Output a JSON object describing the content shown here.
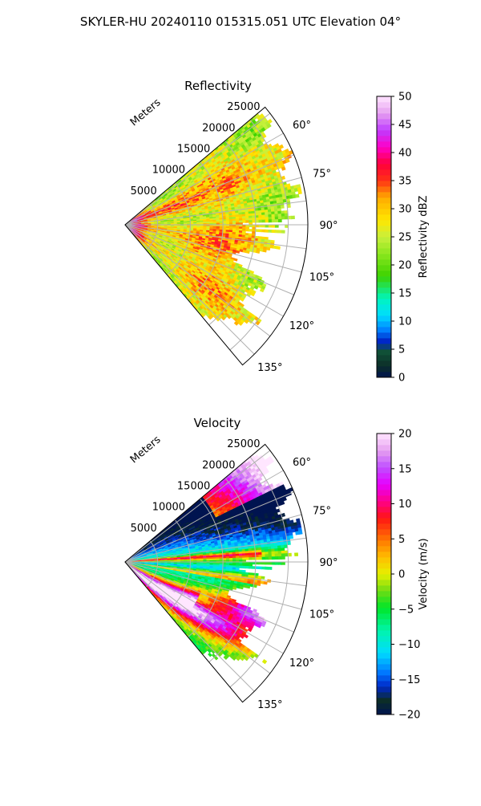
{
  "figure_title": "SKYLER-HU  20240110  015315.051 UTC Elevation 04°",
  "chart_data": [
    {
      "type": "heatmap",
      "title": "Reflectivity",
      "range_label": "Meters",
      "range_ticks": [
        5000,
        10000,
        15000,
        20000,
        25000
      ],
      "range_max": 28000,
      "azimuth_range": [
        50,
        140
      ],
      "azimuth_ticks": [
        "60°",
        "75°",
        "90°",
        "105°",
        "120°",
        "135°"
      ],
      "colorbar": {
        "label": "Reflectivity dBZ",
        "min": 0,
        "max": 50,
        "ticks": [
          "0",
          "5",
          "10",
          "15",
          "20",
          "25",
          "30",
          "35",
          "40",
          "45",
          "50"
        ]
      }
    },
    {
      "type": "heatmap",
      "title": "Velocity",
      "range_label": "Meters",
      "range_ticks": [
        5000,
        10000,
        15000,
        20000,
        25000
      ],
      "range_max": 28000,
      "azimuth_range": [
        50,
        140
      ],
      "azimuth_ticks": [
        "60°",
        "75°",
        "90°",
        "105°",
        "120°",
        "135°"
      ],
      "colorbar": {
        "label": "Velocity (m/s)",
        "min": -20,
        "max": 20,
        "ticks": [
          "−20",
          "−15",
          "−10",
          "−5",
          "0",
          "5",
          "10",
          "15",
          "20"
        ]
      }
    }
  ]
}
